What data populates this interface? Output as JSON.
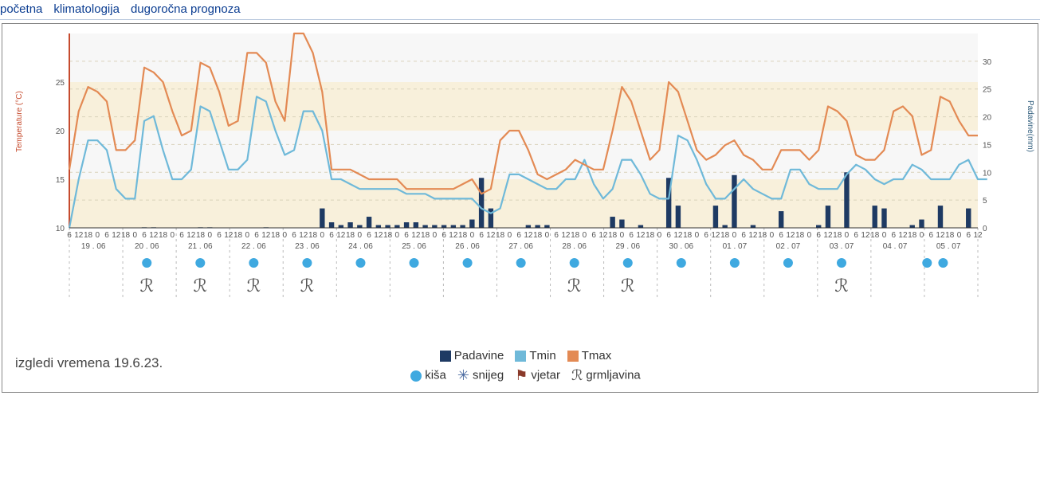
{
  "nav": {
    "items": [
      "početna",
      "klimatologija",
      "dugoročna prognoza"
    ],
    "link_color": "#0b3d91"
  },
  "chart": {
    "type": "combo-line-bar",
    "background_color": "#ffffff",
    "band_color": "#f7eed7",
    "band_color_alt": "#efefef",
    "grid_color": "#d9d2bb",
    "yaxis_left": {
      "label": "Temperature (°C)",
      "unit": "°C",
      "color": "#c64b2e",
      "min": 10,
      "max": 30,
      "ticks": [
        10,
        15,
        20,
        25
      ]
    },
    "yaxis_right": {
      "label": "Padavine(mm)",
      "unit": "mm",
      "color": "#2c5a7a",
      "min": 0,
      "max": 35,
      "ticks": [
        0,
        5,
        10,
        15,
        20,
        25,
        30
      ]
    },
    "xaxis": {
      "hour_labels": [
        "6",
        "12",
        "18",
        "0"
      ],
      "dates": [
        "19 . 06",
        "20 . 06",
        "21 . 06",
        "22 . 06",
        "23 . 06",
        "24 . 06",
        "25 . 06",
        "26 . 06",
        "27 . 06",
        "28 . 06",
        "29 . 06",
        "30 . 06",
        "01 . 07",
        "02 . 07",
        "03 . 07",
        "04 . 07",
        "05 . 07"
      ]
    },
    "series": {
      "tmax": {
        "label": "Tmax",
        "color": "#e38a54",
        "line_width": 2.2,
        "values": [
          16,
          22,
          24.5,
          24,
          23,
          18,
          18,
          19,
          26.5,
          26,
          25,
          22,
          19.5,
          20,
          27,
          26.5,
          24,
          20.5,
          21,
          28,
          28,
          27,
          23,
          21,
          30,
          30,
          28,
          24,
          16,
          16,
          16,
          15.5,
          15,
          15,
          15,
          15,
          14,
          14,
          14,
          14,
          14,
          14,
          14.5,
          15,
          13.5,
          14,
          19,
          20,
          20,
          18,
          15.5,
          15,
          15.5,
          16,
          17,
          16.5,
          16,
          16,
          20,
          24.5,
          23,
          20,
          17,
          18,
          25,
          24,
          21,
          18,
          17,
          17.5,
          18.5,
          19,
          17.5,
          17,
          16,
          16,
          18,
          18,
          18,
          17,
          18,
          22.5,
          22,
          21,
          17.5,
          17,
          17,
          18,
          22,
          22.5,
          21.5,
          17.5,
          18,
          23.5,
          23,
          21,
          19.5,
          19.5
        ]
      },
      "tmin": {
        "label": "Tmin",
        "color": "#6fb9d9",
        "line_width": 2.2,
        "values": [
          10,
          15,
          19,
          19,
          18,
          14,
          13,
          13,
          21,
          21.5,
          18,
          15,
          15,
          16,
          22.5,
          22,
          19,
          16,
          16,
          17,
          23.5,
          23,
          20,
          17.5,
          18,
          22,
          22,
          20,
          15,
          15,
          14.5,
          14,
          14,
          14,
          14,
          14,
          13.5,
          13.5,
          13.5,
          13,
          13,
          13,
          13,
          13,
          12,
          11.5,
          12,
          15.5,
          15.5,
          15,
          14.5,
          14,
          14,
          15,
          15,
          17,
          14.5,
          13,
          14,
          17,
          17,
          15.5,
          13.5,
          13,
          13,
          19.5,
          19,
          17,
          14.5,
          13,
          13,
          14,
          15,
          14,
          13.5,
          13,
          13,
          16,
          16,
          14.5,
          14,
          14,
          14,
          15.5,
          16.5,
          16,
          15,
          14.5,
          15,
          15,
          16.5,
          16,
          15,
          15,
          15,
          16.5,
          17,
          15,
          15
        ]
      },
      "precip": {
        "label": "Padavine",
        "color": "#1e3a63",
        "bar_width": 0.55,
        "values": [
          0,
          0,
          0,
          0,
          0,
          0,
          0,
          0,
          0.1,
          0.1,
          0,
          0,
          0,
          0,
          0.1,
          0.1,
          0,
          0,
          0,
          0,
          0,
          0.1,
          0,
          0,
          0,
          0,
          0,
          3.5,
          1,
          0.5,
          1,
          0.5,
          2,
          0.5,
          0.5,
          0.5,
          1,
          1,
          0.5,
          0.5,
          0.5,
          0.5,
          0.5,
          1.5,
          9,
          3.5,
          0,
          0,
          0,
          0.5,
          0.5,
          0.5,
          0,
          0,
          0,
          0,
          0,
          0,
          2,
          1.5,
          0,
          0.5,
          0,
          0,
          9,
          4,
          0,
          0,
          0,
          4,
          0.5,
          9.5,
          0,
          0.5,
          0,
          0,
          3,
          0,
          0,
          0,
          0.5,
          4,
          0,
          10,
          0,
          0,
          4,
          3.5,
          0,
          0,
          0.5,
          1.5,
          0,
          4,
          0,
          0,
          3.5,
          0
        ]
      }
    },
    "rain_markers": {
      "color": "#3fa9e0",
      "positions": [
        1,
        2,
        3,
        4,
        5,
        6,
        7,
        8,
        9,
        10,
        11,
        12,
        13,
        14,
        15.6,
        15.9
      ]
    },
    "thunder_markers": {
      "color": "#555555",
      "glyph": "ℛ",
      "positions": [
        1,
        2,
        3,
        4,
        9,
        10,
        14
      ]
    }
  },
  "caption": "izgledi vremena 19.6.23.",
  "legend": {
    "row1": [
      {
        "type": "box",
        "color": "#1e3a63",
        "label": "Padavine"
      },
      {
        "type": "box",
        "color": "#6fb9d9",
        "label": "Tmin"
      },
      {
        "type": "box",
        "color": "#e38a54",
        "label": "Tmax"
      }
    ],
    "row2": [
      {
        "type": "dot",
        "color": "#3fa9e0",
        "label": "kiša"
      },
      {
        "type": "glyph",
        "glyph": "✳",
        "color": "#4a6aa0",
        "label": "snijeg"
      },
      {
        "type": "glyph",
        "glyph": "⚑",
        "color": "#8a3a2a",
        "label": "vjetar"
      },
      {
        "type": "glyph",
        "glyph": "ℛ",
        "color": "#555",
        "label": "grmljavina"
      }
    ]
  }
}
